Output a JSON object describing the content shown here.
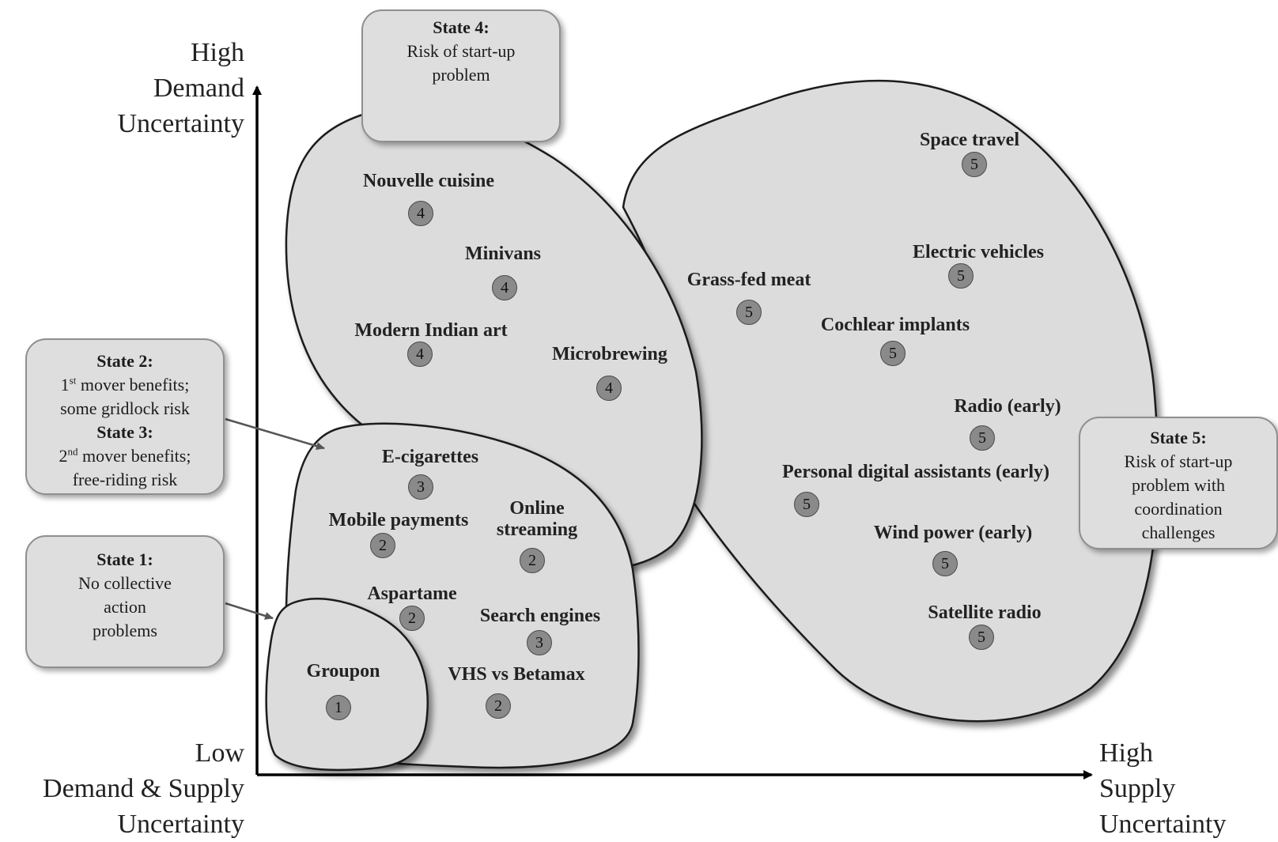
{
  "axes": {
    "y_high": [
      "High",
      "Demand",
      "Uncertainty"
    ],
    "origin": [
      "Low",
      "Demand & Supply",
      "Uncertainty"
    ],
    "x_high": [
      "High",
      "Supply",
      "Uncertainty"
    ]
  },
  "callouts": {
    "state1": {
      "title": "State 1:",
      "lines": [
        "No collective",
        "action",
        "problems"
      ]
    },
    "state23": {
      "state2_title": "State 2:",
      "state2_line1_pre": "1",
      "state2_line1_sup": "st",
      "state2_line1_post": " mover benefits;",
      "state2_line2": "some gridlock risk",
      "state3_title": "State 3:",
      "state3_line1_pre": "2",
      "state3_line1_sup": "nd",
      "state3_line1_post": " mover benefits;",
      "state3_line2": "free-riding risk"
    },
    "state4": {
      "title": "State 4:",
      "lines": [
        "Risk of start-up",
        "problem"
      ]
    },
    "state5": {
      "title": "State 5:",
      "lines": [
        "Risk of start-up",
        "problem with",
        "coordination",
        "challenges"
      ]
    }
  },
  "items": [
    {
      "label": "Groupon",
      "state": "1"
    },
    {
      "label": "Mobile payments",
      "state": "2"
    },
    {
      "label": "Online\nstreaming",
      "state": "2"
    },
    {
      "label": "Aspartame",
      "state": "2"
    },
    {
      "label": "VHS vs Betamax",
      "state": "2"
    },
    {
      "label": "E-cigarettes",
      "state": "3"
    },
    {
      "label": "Search engines",
      "state": "3"
    },
    {
      "label": "Nouvelle cuisine",
      "state": "4"
    },
    {
      "label": "Minivans",
      "state": "4"
    },
    {
      "label": "Modern Indian art",
      "state": "4"
    },
    {
      "label": "Microbrewing",
      "state": "4"
    },
    {
      "label": "Space travel",
      "state": "5"
    },
    {
      "label": "Electric vehicles",
      "state": "5"
    },
    {
      "label": "Grass-fed meat",
      "state": "5"
    },
    {
      "label": "Cochlear implants",
      "state": "5"
    },
    {
      "label": "Radio (early)",
      "state": "5"
    },
    {
      "label": "Personal digital assistants (early)",
      "state": "5"
    },
    {
      "label": "Wind power (early)",
      "state": "5"
    },
    {
      "label": "Satellite radio",
      "state": "5"
    }
  ],
  "colors": {
    "region_fill": "#dcdcdc",
    "region_stroke": "#1a1a1a",
    "badge_fill": "#8a8a8a",
    "callout_fill": "#dedede"
  }
}
